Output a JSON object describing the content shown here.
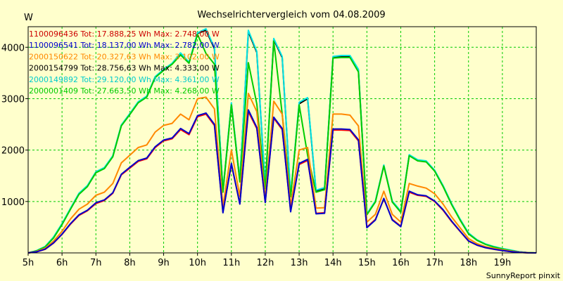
{
  "chart_data": {
    "type": "line",
    "title": "Wechselrichtervergleich vom 04.08.2009",
    "ylabel": "W",
    "xlabel": "",
    "footer": "SunnyReport pinxit",
    "ylim": [
      0,
      4400
    ],
    "xlim": [
      5,
      20
    ],
    "x_ticks": [
      {
        "value": 5,
        "label": "5h"
      },
      {
        "value": 6,
        "label": "6h"
      },
      {
        "value": 7,
        "label": "7h"
      },
      {
        "value": 8,
        "label": "8h"
      },
      {
        "value": 9,
        "label": "9h"
      },
      {
        "value": 10,
        "label": "10h"
      },
      {
        "value": 11,
        "label": "11h"
      },
      {
        "value": 12,
        "label": "12h"
      },
      {
        "value": 13,
        "label": "13h"
      },
      {
        "value": 14,
        "label": "14h"
      },
      {
        "value": 15,
        "label": "15h"
      },
      {
        "value": 16,
        "label": "16h"
      },
      {
        "value": 17,
        "label": "17h"
      },
      {
        "value": 18,
        "label": "18h"
      },
      {
        "value": 19,
        "label": "19h"
      }
    ],
    "y_ticks": [
      {
        "value": 1000,
        "label": "1000"
      },
      {
        "value": 2000,
        "label": "2000"
      },
      {
        "value": 3000,
        "label": "3000"
      },
      {
        "value": 4000,
        "label": "4000"
      }
    ],
    "grid": true,
    "x": [
      5.0,
      5.25,
      5.5,
      5.75,
      6.0,
      6.25,
      6.5,
      6.75,
      7.0,
      7.25,
      7.5,
      7.75,
      8.0,
      8.25,
      8.5,
      8.75,
      9.0,
      9.25,
      9.5,
      9.75,
      10.0,
      10.25,
      10.5,
      10.75,
      11.0,
      11.25,
      11.5,
      11.75,
      12.0,
      12.25,
      12.5,
      12.75,
      13.0,
      13.25,
      13.5,
      13.75,
      14.0,
      14.25,
      14.5,
      14.75,
      15.0,
      15.25,
      15.5,
      15.75,
      16.0,
      16.25,
      16.5,
      16.75,
      17.0,
      17.25,
      17.5,
      17.75,
      18.0,
      18.25,
      18.5,
      18.75,
      19.0,
      19.25,
      19.5,
      19.75,
      20.0
    ],
    "series": [
      {
        "name": "2000154799",
        "color": "#000000",
        "legend": "2000154799 Tot: 28.756,63 Wh Max: 4.333,00 W",
        "values": [
          0,
          40,
          120,
          300,
          560,
          860,
          1150,
          1300,
          1570,
          1650,
          1880,
          2480,
          2700,
          2930,
          3040,
          3420,
          3560,
          3680,
          3880,
          3700,
          4270,
          4330,
          3970,
          1200,
          2900,
          1400,
          4300,
          3900,
          1280,
          4150,
          3800,
          1100,
          2900,
          3000,
          1200,
          1250,
          3800,
          3820,
          3820,
          3550,
          750,
          1000,
          1700,
          1000,
          800,
          1900,
          1800,
          1780,
          1600,
          1300,
          950,
          650,
          380,
          250,
          170,
          120,
          80,
          50,
          20,
          5,
          0
        ]
      },
      {
        "name": "2000149892",
        "color": "#00e5e5",
        "legend": "2000149892 Tot: 29.120,00 Wh Max: 4.361,00 W",
        "values": [
          0,
          45,
          125,
          310,
          570,
          870,
          1160,
          1310,
          1580,
          1660,
          1890,
          2490,
          2710,
          2940,
          3050,
          3430,
          3570,
          3690,
          3890,
          3710,
          4280,
          4361,
          3990,
          1220,
          2920,
          1420,
          4330,
          3920,
          1300,
          4170,
          3820,
          1120,
          2930,
          3020,
          1220,
          1270,
          3820,
          3840,
          3840,
          3570,
          760,
          1010,
          1710,
          1010,
          810,
          1910,
          1810,
          1790,
          1610,
          1310,
          960,
          660,
          390,
          255,
          175,
          125,
          85,
          55,
          22,
          6,
          0
        ]
      },
      {
        "name": "2000001409",
        "color": "#00cc00",
        "legend": "2000001409 Tot: 27.663,50 Wh Max: 4.268,00 W",
        "values": [
          0,
          40,
          115,
          290,
          550,
          850,
          1140,
          1290,
          1560,
          1640,
          1870,
          2470,
          2690,
          2920,
          3030,
          3410,
          3550,
          3670,
          3850,
          3690,
          4250,
          3880,
          3670,
          1180,
          2880,
          1380,
          3700,
          2900,
          1250,
          4120,
          2700,
          1090,
          2880,
          1900,
          1180,
          1230,
          3790,
          3800,
          3800,
          3520,
          740,
          990,
          1690,
          990,
          790,
          1890,
          1790,
          1770,
          1590,
          1290,
          940,
          640,
          370,
          245,
          165,
          115,
          75,
          45,
          18,
          5,
          0
        ]
      },
      {
        "name": "2000150622",
        "color": "#ff8800",
        "legend": "2000150622 Tot: 20.327,63 Wh Max: 3.102,00 W",
        "values": [
          0,
          30,
          90,
          230,
          420,
          660,
          850,
          950,
          1120,
          1180,
          1350,
          1750,
          1900,
          2050,
          2100,
          2350,
          2480,
          2520,
          2700,
          2590,
          3000,
          3030,
          2800,
          900,
          2000,
          1100,
          3102,
          2750,
          1050,
          2950,
          2700,
          900,
          2000,
          2050,
          870,
          880,
          2700,
          2700,
          2680,
          2470,
          600,
          750,
          1200,
          750,
          600,
          1350,
          1300,
          1260,
          1150,
          950,
          700,
          490,
          280,
          180,
          120,
          90,
          60,
          35,
          15,
          4,
          0
        ]
      },
      {
        "name": "1100096436",
        "color": "#ff0000",
        "legend": "1100096436 Tot: 17.888,25 Wh Max: 2.748,00 W",
        "values": [
          0,
          20,
          70,
          190,
          360,
          560,
          730,
          820,
          960,
          1020,
          1160,
          1520,
          1650,
          1780,
          1830,
          2050,
          2180,
          2220,
          2400,
          2300,
          2650,
          2700,
          2480,
          800,
          1720,
          960,
          2748,
          2420,
          990,
          2620,
          2400,
          820,
          1720,
          1800,
          770,
          780,
          2390,
          2390,
          2380,
          2180,
          500,
          650,
          1050,
          650,
          520,
          1180,
          1120,
          1100,
          1000,
          830,
          610,
          420,
          230,
          150,
          100,
          70,
          45,
          25,
          10,
          2,
          0
        ]
      },
      {
        "name": "1100096541",
        "color": "#0000cc",
        "legend": "1100096541 Tot: 18.137,00 Wh Max: 2.782,00 W",
        "values": [
          0,
          22,
          72,
          195,
          365,
          570,
          740,
          830,
          975,
          1030,
          1170,
          1530,
          1665,
          1795,
          1845,
          2065,
          2195,
          2235,
          2420,
          2320,
          2670,
          2720,
          2500,
          780,
          1740,
          950,
          2782,
          2440,
          980,
          2640,
          2420,
          800,
          1740,
          1820,
          760,
          770,
          2410,
          2410,
          2400,
          2200,
          490,
          640,
          1060,
          640,
          510,
          1200,
          1130,
          1110,
          1010,
          840,
          620,
          425,
          235,
          152,
          102,
          72,
          46,
          26,
          11,
          2,
          0
        ]
      }
    ],
    "legend_order": [
      "1100096436",
      "1100096541",
      "2000150622",
      "2000154799",
      "2000149892",
      "2000001409"
    ],
    "legend_colors": {
      "1100096436": "#cc0000",
      "1100096541": "#0000cc",
      "2000150622": "#ff8800",
      "2000154799": "#000000",
      "2000149892": "#00cccc",
      "2000001409": "#00cc00"
    }
  }
}
